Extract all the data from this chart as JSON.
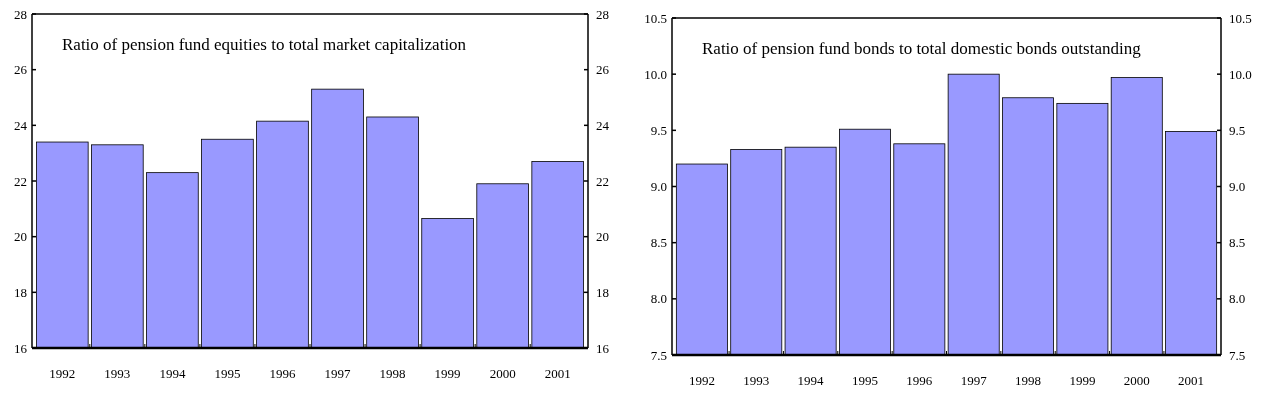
{
  "chart_data": [
    {
      "type": "bar",
      "title": "Ratio of pension fund equities to total market capitalization",
      "categories": [
        "1992",
        "1993",
        "1994",
        "1995",
        "1996",
        "1997",
        "1998",
        "1999",
        "2000",
        "2001"
      ],
      "series": [
        {
          "color": "#9999ff",
          "values": [
            23.4,
            23.3,
            22.3,
            23.5,
            24.15,
            25.3,
            24.3,
            20.65,
            21.9,
            22.7
          ]
        }
      ],
      "ylim": [
        16,
        28
      ],
      "yticks": [
        16,
        18,
        20,
        22,
        24,
        26,
        28
      ],
      "y2lim": [
        16,
        28
      ],
      "y2ticks": [
        16,
        18,
        20,
        22,
        24,
        26,
        28
      ],
      "grid": false
    },
    {
      "type": "bar",
      "title": "Ratio of pension fund bonds to total domestic bonds outstanding",
      "categories": [
        "1992",
        "1993",
        "1994",
        "1995",
        "1996",
        "1997",
        "1998",
        "1999",
        "2000",
        "2001"
      ],
      "series": [
        {
          "color": "#9999ff",
          "values": [
            9.2,
            9.33,
            9.35,
            9.51,
            9.38,
            10.0,
            9.79,
            9.74,
            9.97,
            9.49
          ]
        }
      ],
      "ylim": [
        7.5,
        10.5
      ],
      "yticks": [
        7.5,
        {
          "value": 8,
          "label": "8.0"
        },
        8.5,
        {
          "value": 9,
          "label": "9.0"
        },
        9.5,
        {
          "value": 10,
          "label": "10.0"
        },
        10.5
      ],
      "y2lim": [
        7.5,
        10.5
      ],
      "y2ticks": [
        7.5,
        {
          "value": 8,
          "label": "8.0"
        },
        8.5,
        {
          "value": 9,
          "label": "9.0"
        },
        9.5,
        {
          "value": 10,
          "label": "10.0"
        },
        10.5
      ],
      "grid": false
    }
  ]
}
